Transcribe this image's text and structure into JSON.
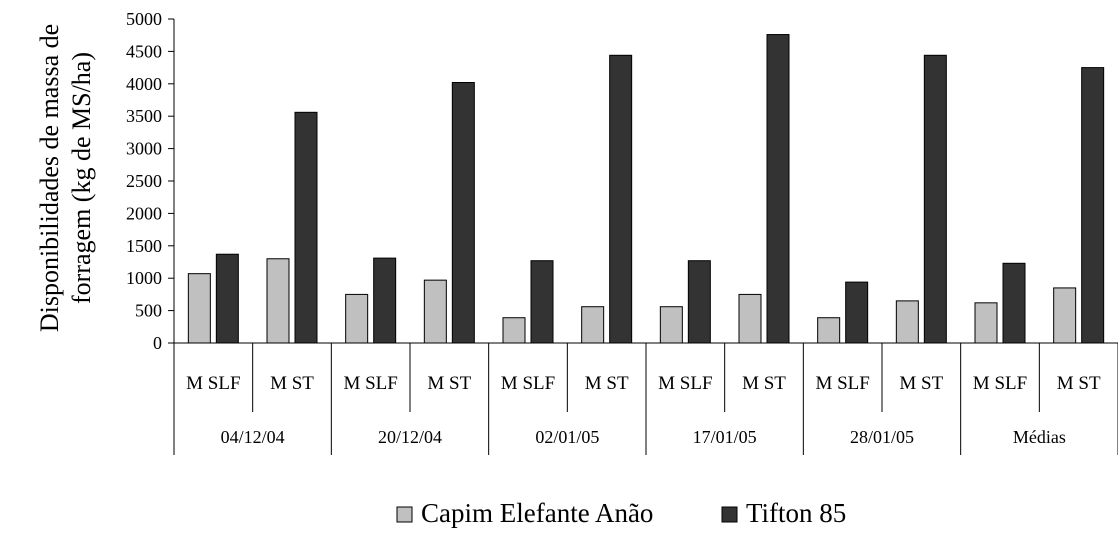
{
  "chart_data": {
    "type": "bar",
    "ylabel": [
      "Disponibilidades de massa de",
      "forragem (kg de MS/ha)"
    ],
    "xlabel": "",
    "title": "",
    "ylim": [
      0,
      5000
    ],
    "yticks": [
      0,
      500,
      1000,
      1500,
      2000,
      2500,
      3000,
      3500,
      4000,
      4500,
      5000
    ],
    "groups": [
      "04/12/04",
      "20/12/04",
      "02/01/05",
      "17/01/05",
      "28/01/05",
      "Médias"
    ],
    "subcategories": [
      "MSLF",
      "MST"
    ],
    "subcategory_labels": [
      "M SLF",
      "M ST"
    ],
    "series": [
      {
        "name": "Capim Elefante Anão",
        "color": "#c0c0c0",
        "values": [
          1070,
          1300,
          750,
          970,
          390,
          560,
          560,
          750,
          390,
          650,
          620,
          850
        ]
      },
      {
        "name": "Tifton 85",
        "color": "#333333",
        "values": [
          1370,
          3560,
          1310,
          4020,
          1270,
          4440,
          1270,
          4760,
          940,
          4440,
          1230,
          4250
        ]
      }
    ],
    "legend_position": "bottom",
    "grid": false
  }
}
